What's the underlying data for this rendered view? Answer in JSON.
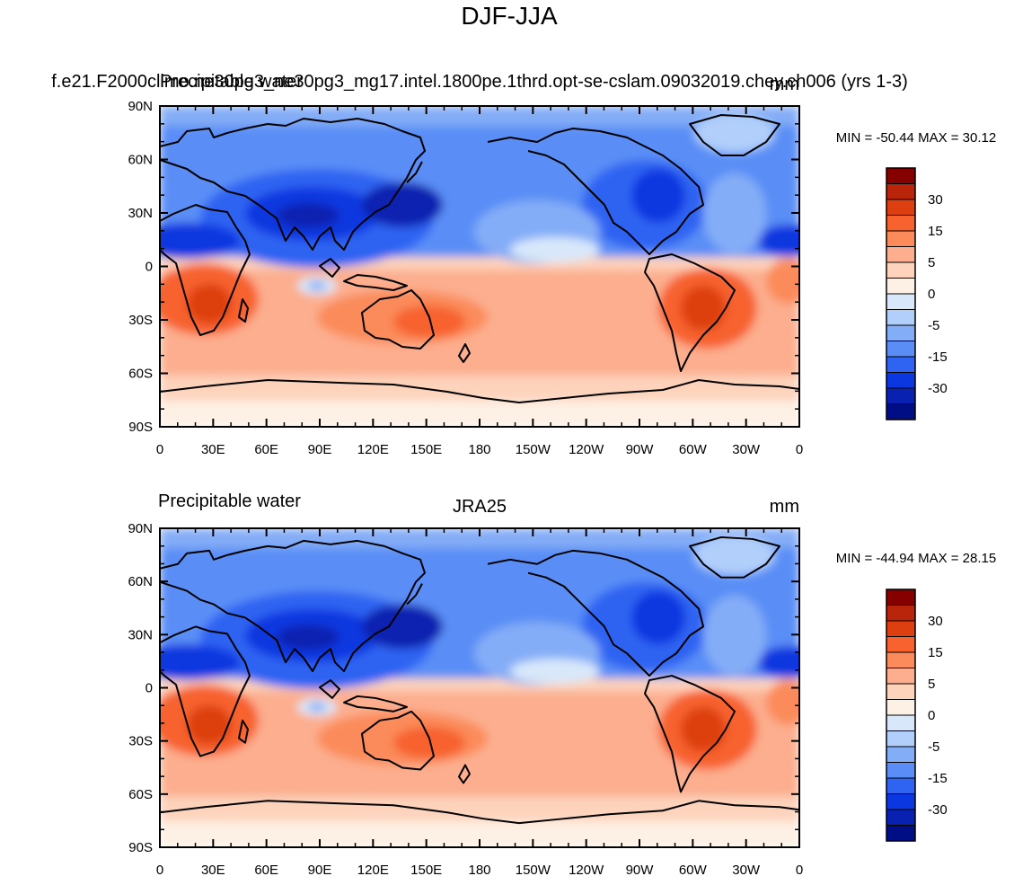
{
  "figure_title": "DJF-JJA",
  "panels": [
    {
      "left_label": "Precipitable water",
      "center_label": "f.e21.F2000climo.ne30pg3_ne30pg3_mg17.intel.1800pe.1thrd.opt-se-cslam.09032019.chey.ch006 (yrs 1-3)",
      "units_label": "mm",
      "stats": "MIN = -50.44 MAX =  30.12",
      "min": -50.44,
      "max": 30.12
    },
    {
      "left_label": "Precipitable water",
      "center_label": "JRA25",
      "units_label": "mm",
      "stats": "MIN = -44.94 MAX =  28.15",
      "min": -44.94,
      "max": 28.15
    }
  ],
  "lat_ticks": [
    "90N",
    "60N",
    "30N",
    "0",
    "30S",
    "60S",
    "90S"
  ],
  "lon_ticks": [
    "0",
    "30E",
    "60E",
    "90E",
    "120E",
    "150E",
    "180",
    "150W",
    "120W",
    "90W",
    "60W",
    "30W",
    "0"
  ],
  "colorbar": {
    "labels": [
      "30",
      "15",
      "5",
      "0",
      "-5",
      "-15",
      "-30"
    ],
    "colors": [
      "#870000",
      "#b9250a",
      "#dd3f11",
      "#f7622e",
      "#fb8b5a",
      "#fcae8e",
      "#fdd3bc",
      "#fdf0e4",
      "#d8e8fa",
      "#b1cffa",
      "#84adf7",
      "#5a8ef6",
      "#2f63f2",
      "#0b37e0",
      "#0821b0",
      "#000e85"
    ]
  },
  "chart_data": [
    {
      "type": "heatmap",
      "title": "Precipitable water — f.e21.F2000climo.ne30pg3_ne30pg3_mg17.intel.1800pe.1thrd.opt-se-cslam.09032019.chey.ch006 (yrs 1-3)",
      "units": "mm",
      "xlim": [
        0,
        360
      ],
      "ylim": [
        -90,
        90
      ],
      "min": -50.44,
      "max": 30.12
    },
    {
      "type": "heatmap",
      "title": "Precipitable water — JRA25",
      "units": "mm",
      "xlim": [
        0,
        360
      ],
      "ylim": [
        -90,
        90
      ],
      "min": -44.94,
      "max": 28.15
    }
  ]
}
